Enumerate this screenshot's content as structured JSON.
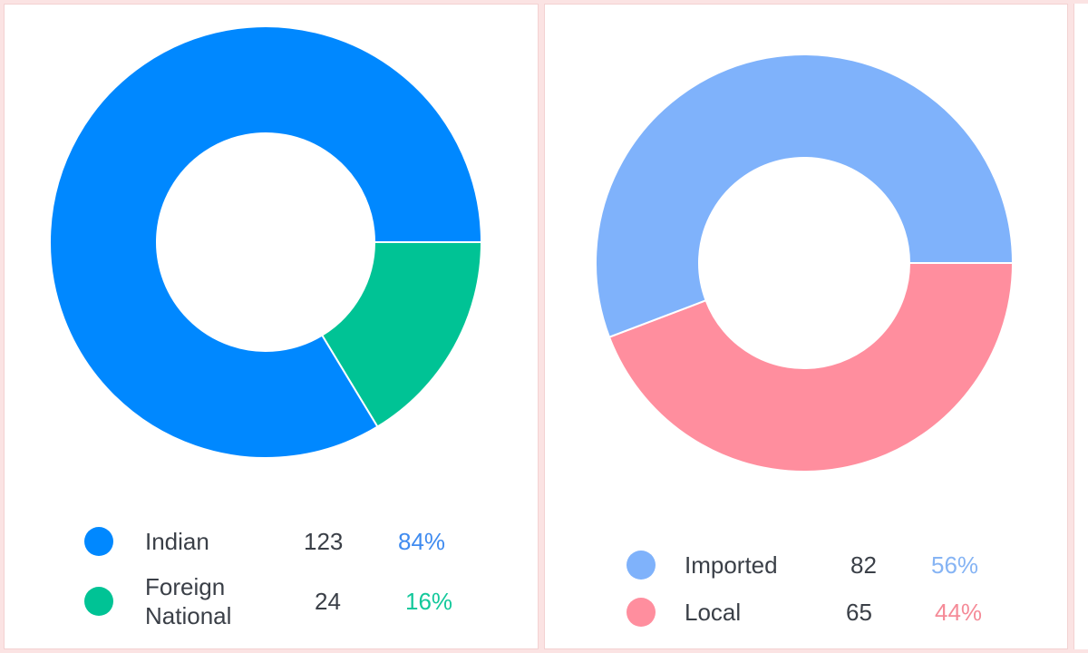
{
  "chart_data": [
    {
      "type": "pie",
      "donut": true,
      "categories": [
        "Indian",
        "Foreign National"
      ],
      "values": [
        123,
        24
      ],
      "percent_labels": [
        "84%",
        "16%"
      ],
      "colors": [
        "#0088ff",
        "#00c395"
      ],
      "legend_placement": "bottom"
    },
    {
      "type": "pie",
      "donut": true,
      "categories": [
        "Imported",
        "Local"
      ],
      "values": [
        82,
        65
      ],
      "percent_labels": [
        "56%",
        "44%"
      ],
      "colors": [
        "#7fb2fb",
        "#ff8e9e"
      ],
      "legend_placement": "bottom"
    }
  ],
  "legend_left": [
    {
      "label": "Indian",
      "count": "123",
      "pct": "84%"
    },
    {
      "label": "Foreign National",
      "count": "24",
      "pct": "16%"
    }
  ],
  "legend_right": [
    {
      "label": "Imported",
      "count": "82",
      "pct": "56%"
    },
    {
      "label": "Local",
      "count": "65",
      "pct": "44%"
    }
  ]
}
